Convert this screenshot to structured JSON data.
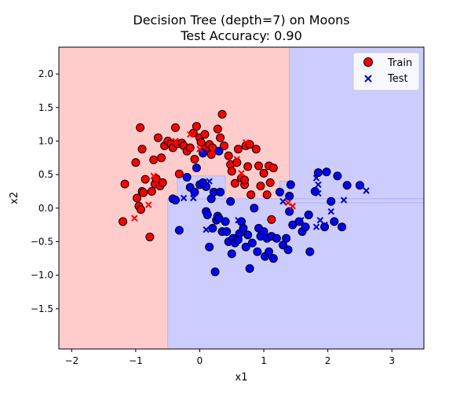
{
  "chart_data": {
    "type": "scatter",
    "title_line1": "Decision Tree (depth=7) on Moons",
    "title_line2": "Test Accuracy: 0.90",
    "xlabel": "x1",
    "ylabel": "x2",
    "xlim": [
      -2.2,
      3.5
    ],
    "ylim": [
      -2.1,
      2.4
    ],
    "xticks": [
      -2,
      -1,
      0,
      1,
      2,
      3
    ],
    "yticks": [
      -1.5,
      -1.0,
      -0.5,
      0.0,
      0.5,
      1.0,
      1.5,
      2.0
    ],
    "grid": false,
    "legend_position": "top-right",
    "colors": {
      "class0_region": "#ffcccc",
      "class1_region": "#ccccff",
      "class0_point": "#ff0000",
      "class1_point": "#0000ff",
      "test_marker": "#0000cc"
    },
    "decision_regions": [
      {
        "class": 0,
        "x": [
          -2.2,
          1.4
        ],
        "y": [
          -2.1,
          2.4
        ]
      },
      {
        "class": 1,
        "x": [
          1.4,
          3.5
        ],
        "y": [
          -2.1,
          2.4
        ]
      },
      {
        "class": 1,
        "x": [
          -0.5,
          3.5
        ],
        "y": [
          -2.1,
          0.14
        ]
      },
      {
        "class": 1,
        "x": [
          1.25,
          1.4
        ],
        "y": [
          0.14,
          0.4
        ]
      },
      {
        "class": 1,
        "x": [
          -0.35,
          0.4
        ],
        "y": [
          0.14,
          0.48
        ]
      },
      {
        "class": 1,
        "x": [
          1.4,
          3.5
        ],
        "y": [
          0.08,
          0.14
        ]
      }
    ],
    "series": [
      {
        "name": "Train",
        "marker": "circle",
        "points": [
          {
            "x": -1.2,
            "y": -0.2,
            "c": 0
          },
          {
            "x": -1.17,
            "y": 0.36,
            "c": 0
          },
          {
            "x": -1.0,
            "y": 0.68,
            "c": 0
          },
          {
            "x": -0.98,
            "y": 0.15,
            "c": 0
          },
          {
            "x": -0.95,
            "y": 0.03,
            "c": 0
          },
          {
            "x": -0.92,
            "y": -0.02,
            "c": 0
          },
          {
            "x": -0.9,
            "y": 0.25,
            "c": 0
          },
          {
            "x": -0.88,
            "y": 0.23,
            "c": 0
          },
          {
            "x": -0.85,
            "y": 0.43,
            "c": 0
          },
          {
            "x": -0.93,
            "y": 1.2,
            "c": 0
          },
          {
            "x": -0.9,
            "y": 0.88,
            "c": 0
          },
          {
            "x": -0.78,
            "y": -0.43,
            "c": 0
          },
          {
            "x": -0.75,
            "y": 0.25,
            "c": 0
          },
          {
            "x": -0.72,
            "y": 0.72,
            "c": 0
          },
          {
            "x": -0.7,
            "y": 0.36,
            "c": 0
          },
          {
            "x": -0.68,
            "y": 0.44,
            "c": 0
          },
          {
            "x": -0.65,
            "y": 1.05,
            "c": 0
          },
          {
            "x": -0.62,
            "y": 0.33,
            "c": 0
          },
          {
            "x": -0.6,
            "y": 0.75,
            "c": 0
          },
          {
            "x": -0.58,
            "y": 0.38,
            "c": 0
          },
          {
            "x": -0.55,
            "y": 0.93,
            "c": 0
          },
          {
            "x": -0.5,
            "y": 1.0,
            "c": 0
          },
          {
            "x": -0.45,
            "y": 0.96,
            "c": 0
          },
          {
            "x": -0.42,
            "y": 0.9,
            "c": 0
          },
          {
            "x": -0.38,
            "y": 1.2,
            "c": 0
          },
          {
            "x": -0.35,
            "y": 0.96,
            "c": 0
          },
          {
            "x": -0.32,
            "y": 0.51,
            "c": 0
          },
          {
            "x": -0.28,
            "y": 0.97,
            "c": 0
          },
          {
            "x": -0.25,
            "y": 0.93,
            "c": 0
          },
          {
            "x": -0.2,
            "y": 0.85,
            "c": 0
          },
          {
            "x": -0.15,
            "y": 0.9,
            "c": 0
          },
          {
            "x": -0.1,
            "y": 1.12,
            "c": 0
          },
          {
            "x": -0.08,
            "y": 0.73,
            "c": 0
          },
          {
            "x": -0.05,
            "y": 1.22,
            "c": 0
          },
          {
            "x": 0.0,
            "y": 1.05,
            "c": 0
          },
          {
            "x": 0.02,
            "y": 0.98,
            "c": 0
          },
          {
            "x": 0.05,
            "y": 0.85,
            "c": 0
          },
          {
            "x": 0.08,
            "y": 1.1,
            "c": 0
          },
          {
            "x": 0.1,
            "y": 0.9,
            "c": 0
          },
          {
            "x": 0.15,
            "y": 0.95,
            "c": 0
          },
          {
            "x": 0.18,
            "y": 0.8,
            "c": 0
          },
          {
            "x": 0.2,
            "y": 0.9,
            "c": 0
          },
          {
            "x": 0.28,
            "y": 1.18,
            "c": 0
          },
          {
            "x": 0.32,
            "y": 1.05,
            "c": 0
          },
          {
            "x": 0.38,
            "y": 0.93,
            "c": 0
          },
          {
            "x": 0.45,
            "y": 0.78,
            "c": 0
          },
          {
            "x": 0.48,
            "y": 0.65,
            "c": 0
          },
          {
            "x": 0.5,
            "y": 0.55,
            "c": 0
          },
          {
            "x": 0.55,
            "y": 0.37,
            "c": 0
          },
          {
            "x": 0.58,
            "y": 0.68,
            "c": 0
          },
          {
            "x": 0.6,
            "y": 0.88,
            "c": 0
          },
          {
            "x": 0.65,
            "y": 0.45,
            "c": 0
          },
          {
            "x": 0.7,
            "y": 0.35,
            "c": 0
          },
          {
            "x": 0.72,
            "y": 0.93,
            "c": 0
          },
          {
            "x": 0.75,
            "y": 0.62,
            "c": 0
          },
          {
            "x": 0.78,
            "y": 0.95,
            "c": 0
          },
          {
            "x": 0.8,
            "y": 0.2,
            "c": 0
          },
          {
            "x": 0.88,
            "y": 0.88,
            "c": 0
          },
          {
            "x": 0.92,
            "y": 0.63,
            "c": 0
          },
          {
            "x": 0.95,
            "y": 0.33,
            "c": 0
          },
          {
            "x": 1.0,
            "y": 0.52,
            "c": 0
          },
          {
            "x": 1.05,
            "y": 0.2,
            "c": 0
          },
          {
            "x": 1.08,
            "y": 0.63,
            "c": 0
          },
          {
            "x": 1.1,
            "y": 0.38,
            "c": 0
          },
          {
            "x": 1.12,
            "y": -0.17,
            "c": 0
          },
          {
            "x": 1.15,
            "y": 0.6,
            "c": 0
          },
          {
            "x": 0.35,
            "y": 1.4,
            "c": 0
          },
          {
            "x": 0.7,
            "y": 0.42,
            "c": 0
          },
          {
            "x": -0.42,
            "y": 0.14,
            "c": 1
          },
          {
            "x": -0.38,
            "y": 0.12,
            "c": 1
          },
          {
            "x": -0.32,
            "y": -0.33,
            "c": 1
          },
          {
            "x": -0.2,
            "y": 0.46,
            "c": 1
          },
          {
            "x": -0.15,
            "y": 0.31,
            "c": 1
          },
          {
            "x": -0.08,
            "y": 0.24,
            "c": 1
          },
          {
            "x": -0.05,
            "y": 0.6,
            "c": 1
          },
          {
            "x": 0.0,
            "y": 0.35,
            "c": 1
          },
          {
            "x": 0.05,
            "y": 0.38,
            "c": 1
          },
          {
            "x": 0.1,
            "y": -0.05,
            "c": 1
          },
          {
            "x": 0.1,
            "y": 0.32,
            "c": 1
          },
          {
            "x": 0.12,
            "y": -0.1,
            "c": 1
          },
          {
            "x": 0.15,
            "y": -0.58,
            "c": 1
          },
          {
            "x": 0.18,
            "y": 0.14,
            "c": 1
          },
          {
            "x": 0.2,
            "y": -0.3,
            "c": 1
          },
          {
            "x": 0.22,
            "y": 0.24,
            "c": 1
          },
          {
            "x": 0.24,
            "y": -0.95,
            "c": 1
          },
          {
            "x": 0.26,
            "y": -0.18,
            "c": 1
          },
          {
            "x": 0.28,
            "y": -0.12,
            "c": 1
          },
          {
            "x": 0.3,
            "y": -0.15,
            "c": 1
          },
          {
            "x": 0.32,
            "y": 0.24,
            "c": 1
          },
          {
            "x": 0.35,
            "y": -0.35,
            "c": 1
          },
          {
            "x": 0.4,
            "y": -0.2,
            "c": 1
          },
          {
            "x": 0.42,
            "y": -0.35,
            "c": 1
          },
          {
            "x": 0.45,
            "y": -0.5,
            "c": 1
          },
          {
            "x": 0.48,
            "y": 0.1,
            "c": 1
          },
          {
            "x": 0.5,
            "y": -0.68,
            "c": 1
          },
          {
            "x": 0.52,
            "y": -0.45,
            "c": 1
          },
          {
            "x": 0.55,
            "y": -0.52,
            "c": 1
          },
          {
            "x": 0.6,
            "y": -0.47,
            "c": 1
          },
          {
            "x": 0.62,
            "y": -0.38,
            "c": 1
          },
          {
            "x": 0.65,
            "y": -0.2,
            "c": 1
          },
          {
            "x": 0.68,
            "y": -0.3,
            "c": 1
          },
          {
            "x": 0.72,
            "y": -0.58,
            "c": 1
          },
          {
            "x": 0.75,
            "y": -0.4,
            "c": 1
          },
          {
            "x": 0.78,
            "y": -0.9,
            "c": 1
          },
          {
            "x": 0.82,
            "y": -0.52,
            "c": 1
          },
          {
            "x": 0.85,
            "y": 0.0,
            "c": 1
          },
          {
            "x": 0.9,
            "y": -0.65,
            "c": 1
          },
          {
            "x": 0.92,
            "y": -0.3,
            "c": 1
          },
          {
            "x": 0.95,
            "y": -0.42,
            "c": 1
          },
          {
            "x": 1.0,
            "y": -0.35,
            "c": 1
          },
          {
            "x": 1.02,
            "y": -0.72,
            "c": 1
          },
          {
            "x": 1.05,
            "y": -0.45,
            "c": 1
          },
          {
            "x": 1.08,
            "y": -0.65,
            "c": 1
          },
          {
            "x": 1.12,
            "y": -0.42,
            "c": 1
          },
          {
            "x": 1.15,
            "y": -0.75,
            "c": 1
          },
          {
            "x": 1.2,
            "y": -0.45,
            "c": 1
          },
          {
            "x": 1.25,
            "y": 0.24,
            "c": 1
          },
          {
            "x": 1.3,
            "y": -0.55,
            "c": 1
          },
          {
            "x": 1.35,
            "y": -0.45,
            "c": 1
          },
          {
            "x": 1.38,
            "y": -0.62,
            "c": 1
          },
          {
            "x": 1.4,
            "y": -0.05,
            "c": 1
          },
          {
            "x": 1.42,
            "y": 0.35,
            "c": 1
          },
          {
            "x": 1.45,
            "y": -0.25,
            "c": 1
          },
          {
            "x": 1.55,
            "y": -0.2,
            "c": 1
          },
          {
            "x": 1.6,
            "y": -0.35,
            "c": 1
          },
          {
            "x": 1.65,
            "y": -0.28,
            "c": 1
          },
          {
            "x": 1.7,
            "y": -0.1,
            "c": 1
          },
          {
            "x": 1.72,
            "y": -0.65,
            "c": 1
          },
          {
            "x": 1.8,
            "y": 0.25,
            "c": 1
          },
          {
            "x": 1.85,
            "y": 0.53,
            "c": 1
          },
          {
            "x": 1.95,
            "y": -0.28,
            "c": 1
          },
          {
            "x": 1.98,
            "y": 0.54,
            "c": 1
          },
          {
            "x": 2.05,
            "y": 0.1,
            "c": 1
          },
          {
            "x": 2.1,
            "y": -0.2,
            "c": 1
          },
          {
            "x": 2.15,
            "y": 0.48,
            "c": 1
          },
          {
            "x": 2.22,
            "y": -0.28,
            "c": 1
          },
          {
            "x": 2.3,
            "y": 0.34,
            "c": 1
          },
          {
            "x": 2.5,
            "y": 0.34,
            "c": 1
          },
          {
            "x": 1.7,
            "y": -0.1,
            "c": 1
          },
          {
            "x": 1.4,
            "y": 0.18,
            "c": 1
          },
          {
            "x": 0.3,
            "y": 0.85,
            "c": 1
          },
          {
            "x": 0.05,
            "y": 0.82,
            "c": 1
          }
        ]
      },
      {
        "name": "Test",
        "marker": "x",
        "points": [
          {
            "x": -1.02,
            "y": -0.15,
            "c": 0
          },
          {
            "x": -0.8,
            "y": 0.05,
            "c": 0
          },
          {
            "x": -0.72,
            "y": 0.48,
            "c": 0
          },
          {
            "x": -0.68,
            "y": 0.38,
            "c": 0
          },
          {
            "x": -0.38,
            "y": 1.0,
            "c": 0
          },
          {
            "x": -0.15,
            "y": 1.1,
            "c": 0
          },
          {
            "x": 0.0,
            "y": 0.88,
            "c": 0
          },
          {
            "x": 0.2,
            "y": 0.85,
            "c": 0
          },
          {
            "x": 0.58,
            "y": 0.73,
            "c": 0
          },
          {
            "x": 0.65,
            "y": 0.52,
            "c": 0
          },
          {
            "x": 0.72,
            "y": 0.98,
            "c": 0
          },
          {
            "x": 1.38,
            "y": 0.08,
            "c": 0
          },
          {
            "x": 1.45,
            "y": 0.03,
            "c": 0
          },
          {
            "x": -0.25,
            "y": 0.15,
            "c": 1
          },
          {
            "x": -0.1,
            "y": 0.15,
            "c": 1
          },
          {
            "x": 0.1,
            "y": -0.32,
            "c": 1
          },
          {
            "x": 0.15,
            "y": 0.4,
            "c": 1
          },
          {
            "x": 0.6,
            "y": -0.18,
            "c": 1
          },
          {
            "x": 1.3,
            "y": 0.1,
            "c": 1
          },
          {
            "x": 1.58,
            "y": -0.18,
            "c": 1
          },
          {
            "x": 1.82,
            "y": 0.45,
            "c": 1
          },
          {
            "x": 1.85,
            "y": 0.35,
            "c": 1
          },
          {
            "x": 1.88,
            "y": -0.18,
            "c": 1
          },
          {
            "x": 1.85,
            "y": 0.22,
            "c": 1
          },
          {
            "x": 1.95,
            "y": -0.25,
            "c": 1
          },
          {
            "x": 2.05,
            "y": -0.05,
            "c": 1
          },
          {
            "x": 2.25,
            "y": 0.12,
            "c": 1
          },
          {
            "x": 2.6,
            "y": 0.26,
            "c": 1
          },
          {
            "x": 1.82,
            "y": -0.28,
            "c": 1
          }
        ]
      }
    ]
  }
}
